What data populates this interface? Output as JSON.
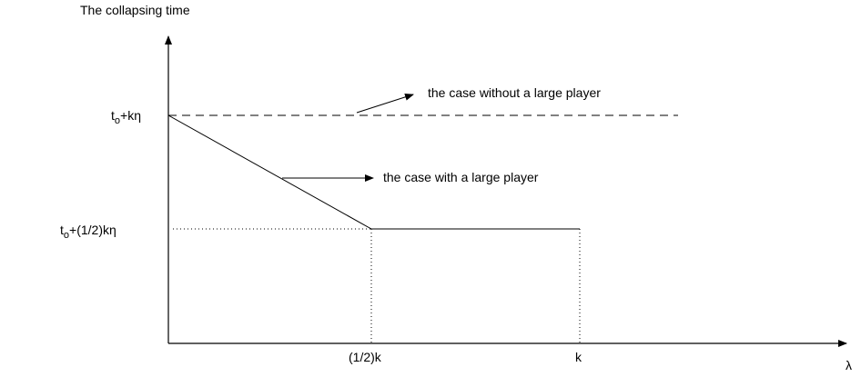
{
  "axes": {
    "y_title": "The collapsing time",
    "x_symbol": "λ"
  },
  "y_ticks": {
    "full_base": "t",
    "full_sub": "o",
    "full_rest": "+kη",
    "half_base": "t",
    "half_sub": "o",
    "half_rest": "+(1/2)kη"
  },
  "x_ticks": {
    "half": "(1/2)k",
    "full": "k"
  },
  "annotations": {
    "without": "the case without a large player",
    "with": "the case with a large player"
  }
}
